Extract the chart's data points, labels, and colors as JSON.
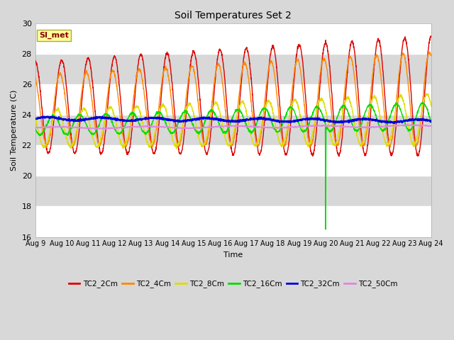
{
  "title": "Soil Temperatures Set 2",
  "xlabel": "Time",
  "ylabel": "Soil Temperature (C)",
  "ylim": [
    16,
    30
  ],
  "xlim": [
    0,
    15
  ],
  "xtick_labels": [
    "Aug 9",
    "Aug 10",
    "Aug 11",
    "Aug 12",
    "Aug 13",
    "Aug 14",
    "Aug 15",
    "Aug 16",
    "Aug 17",
    "Aug 18",
    "Aug 19",
    "Aug 20",
    "Aug 21",
    "Aug 22",
    "Aug 23",
    "Aug 24"
  ],
  "ytick_values": [
    16,
    18,
    20,
    22,
    24,
    26,
    28,
    30
  ],
  "bg_color": "#d8d8d8",
  "plot_bg_color": "#d8d8d8",
  "white_band_ranges": [
    [
      16,
      18
    ],
    [
      20,
      22
    ],
    [
      24,
      26
    ],
    [
      28,
      30
    ]
  ],
  "si_met_label": "SI_met",
  "si_met_color": "#880000",
  "si_met_bg": "#ffff99",
  "legend_entries": [
    "TC2_2Cm",
    "TC2_4Cm",
    "TC2_8Cm",
    "TC2_16Cm",
    "TC2_32Cm",
    "TC2_50Cm"
  ],
  "line_colors": [
    "#dd0000",
    "#ff8800",
    "#dddd00",
    "#00dd00",
    "#0000dd",
    "#dd88dd"
  ],
  "line_widths": [
    1.0,
    1.0,
    1.0,
    1.0,
    1.5,
    1.0
  ]
}
